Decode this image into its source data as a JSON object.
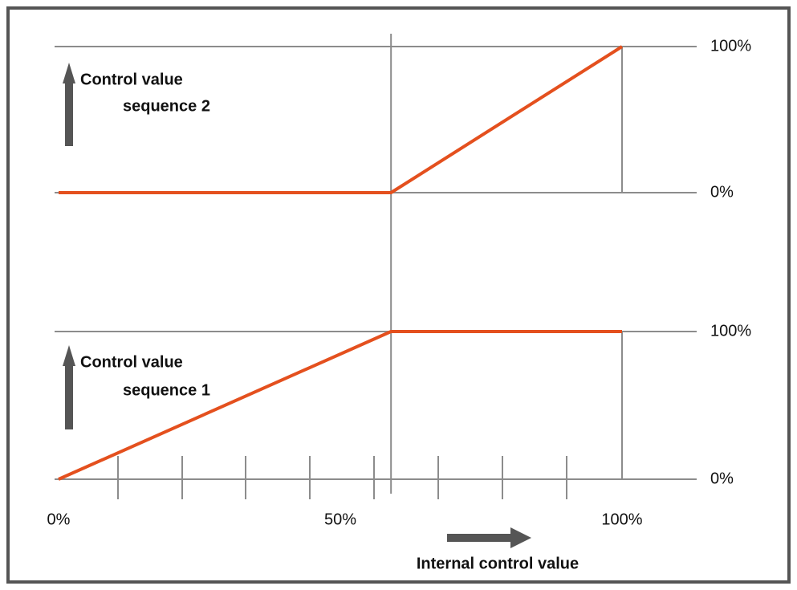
{
  "chart_data": [
    {
      "type": "line",
      "ylabel": [
        "Control value",
        "sequence 2"
      ],
      "x": [
        0,
        59,
        100
      ],
      "xlim": [
        0,
        100
      ],
      "series": [
        {
          "color": "#e4501e",
          "values": [
            0,
            0,
            100
          ]
        }
      ],
      "ylim": [
        0,
        100
      ],
      "yticks": [
        {
          "value": 0,
          "label": "0%"
        },
        {
          "value": 100,
          "label": "100%"
        }
      ]
    },
    {
      "type": "line",
      "ylabel": [
        "Control value",
        "sequence 1"
      ],
      "xlabel": "Internal control value",
      "x": [
        0,
        59,
        100
      ],
      "xlim": [
        0,
        100
      ],
      "xticks": [
        {
          "value": 0,
          "label": "0%"
        },
        {
          "value": 50,
          "label": "50%"
        },
        {
          "value": 100,
          "label": "100%"
        }
      ],
      "series": [
        {
          "color": "#e4501e",
          "values": [
            0,
            100,
            100
          ]
        }
      ],
      "ylim": [
        0,
        100
      ],
      "yticks": [
        {
          "value": 0,
          "label": "0%"
        },
        {
          "value": 100,
          "label": "100%"
        }
      ]
    }
  ]
}
